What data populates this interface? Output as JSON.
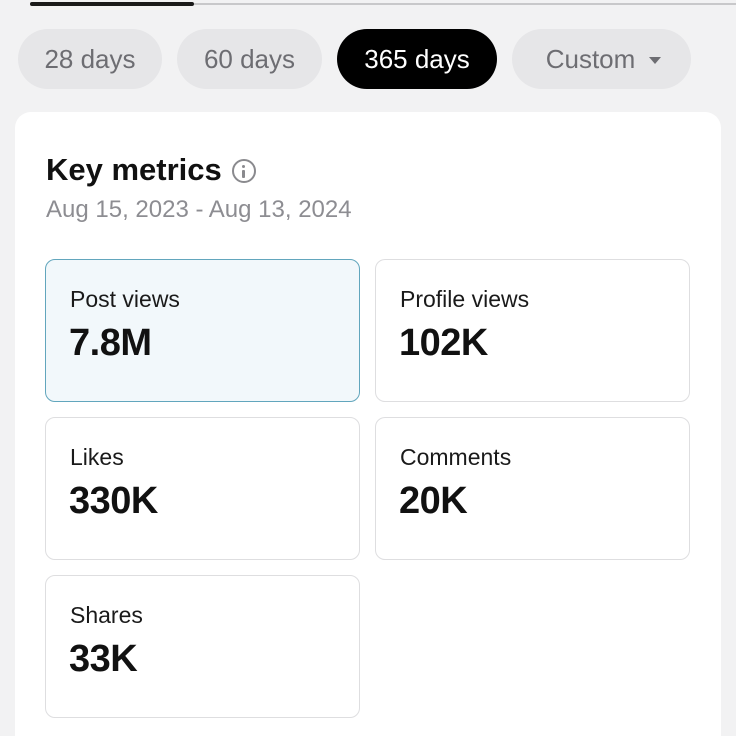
{
  "ranges": {
    "options": [
      "28 days",
      "60 days",
      "365 days",
      "Custom"
    ],
    "selected": "365 days"
  },
  "key_metrics": {
    "title": "Key metrics",
    "date_range": "Aug 15, 2023 - Aug 13, 2024",
    "tiles": [
      {
        "label": "Post views",
        "value": "7.8M",
        "selected": true
      },
      {
        "label": "Profile views",
        "value": "102K",
        "selected": false
      },
      {
        "label": "Likes",
        "value": "330K",
        "selected": false
      },
      {
        "label": "Comments",
        "value": "20K",
        "selected": false
      },
      {
        "label": "Shares",
        "value": "33K",
        "selected": false
      }
    ]
  },
  "colors": {
    "selected_pill": "#000000",
    "selected_tile_bg": "#f2f8fb",
    "selected_tile_border": "#62a6bd"
  },
  "icons": {
    "info": "info-icon",
    "dropdown": "chevron-down-icon"
  }
}
